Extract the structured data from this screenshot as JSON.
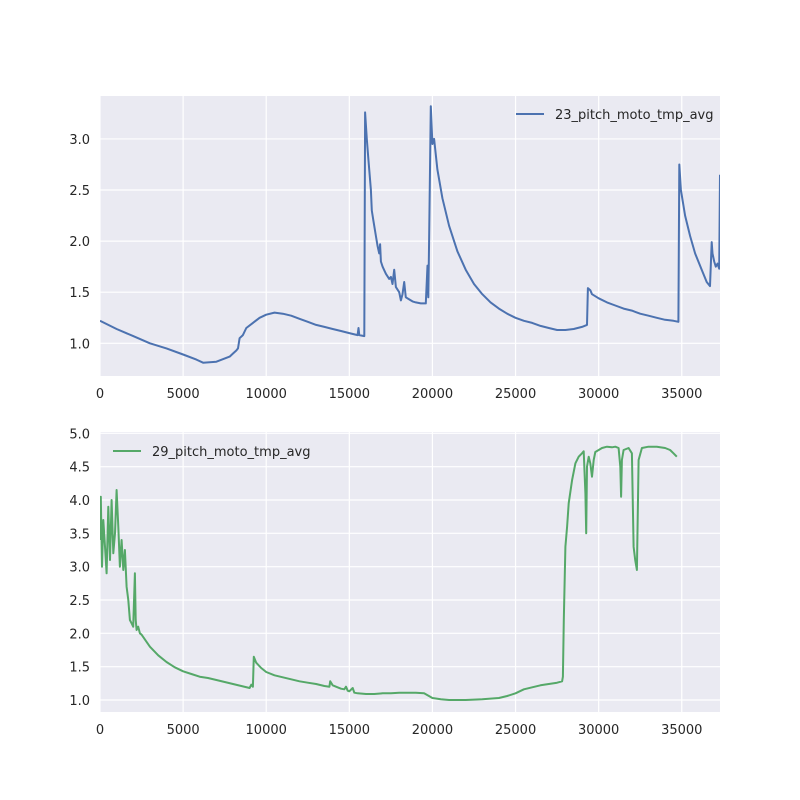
{
  "chart_data": [
    {
      "type": "line",
      "grid": true,
      "legend_position": "top-right",
      "xlim": [
        0,
        37300
      ],
      "ylim": [
        0.68,
        3.42
      ],
      "x_ticks": [
        0,
        5000,
        10000,
        15000,
        20000,
        25000,
        30000,
        35000
      ],
      "x_tick_labels": [
        "0",
        "5000",
        "10000",
        "15000",
        "20000",
        "25000",
        "30000",
        "35000"
      ],
      "y_ticks": [
        1.0,
        1.5,
        2.0,
        2.5,
        3.0
      ],
      "y_tick_labels": [
        "1.0",
        "1.5",
        "2.0",
        "2.5",
        "3.0"
      ],
      "series": [
        {
          "name": "23_pitch_moto_tmp_avg",
          "color": "#4c72b0",
          "points": [
            [
              0,
              1.22
            ],
            [
              1000,
              1.14
            ],
            [
              2000,
              1.07
            ],
            [
              3000,
              1.0
            ],
            [
              4000,
              0.95
            ],
            [
              5000,
              0.89
            ],
            [
              5800,
              0.84
            ],
            [
              6200,
              0.81
            ],
            [
              7000,
              0.82
            ],
            [
              7800,
              0.87
            ],
            [
              8000,
              0.9
            ],
            [
              8200,
              0.93
            ],
            [
              8300,
              0.95
            ],
            [
              8400,
              1.05
            ],
            [
              8600,
              1.08
            ],
            [
              8800,
              1.15
            ],
            [
              9200,
              1.2
            ],
            [
              9600,
              1.25
            ],
            [
              10000,
              1.28
            ],
            [
              10500,
              1.3
            ],
            [
              11000,
              1.29
            ],
            [
              11500,
              1.27
            ],
            [
              12000,
              1.24
            ],
            [
              12500,
              1.21
            ],
            [
              13000,
              1.18
            ],
            [
              13500,
              1.16
            ],
            [
              14000,
              1.14
            ],
            [
              14500,
              1.12
            ],
            [
              15000,
              1.1
            ],
            [
              15500,
              1.08
            ],
            [
              15550,
              1.15
            ],
            [
              15600,
              1.08
            ],
            [
              15900,
              1.07
            ],
            [
              15950,
              3.26
            ],
            [
              16050,
              3.0
            ],
            [
              16150,
              2.8
            ],
            [
              16300,
              2.5
            ],
            [
              16350,
              2.3
            ],
            [
              16400,
              2.25
            ],
            [
              16450,
              2.2
            ],
            [
              16600,
              2.05
            ],
            [
              16700,
              1.95
            ],
            [
              16800,
              1.88
            ],
            [
              16850,
              1.97
            ],
            [
              16900,
              1.8
            ],
            [
              17000,
              1.75
            ],
            [
              17200,
              1.68
            ],
            [
              17400,
              1.63
            ],
            [
              17500,
              1.65
            ],
            [
              17600,
              1.58
            ],
            [
              17700,
              1.72
            ],
            [
              17800,
              1.55
            ],
            [
              18000,
              1.5
            ],
            [
              18100,
              1.42
            ],
            [
              18200,
              1.48
            ],
            [
              18300,
              1.6
            ],
            [
              18400,
              1.45
            ],
            [
              18600,
              1.43
            ],
            [
              18800,
              1.41
            ],
            [
              19000,
              1.4
            ],
            [
              19300,
              1.39
            ],
            [
              19600,
              1.39
            ],
            [
              19700,
              1.76
            ],
            [
              19750,
              1.45
            ],
            [
              19800,
              2.0
            ],
            [
              19900,
              3.32
            ],
            [
              20000,
              2.95
            ],
            [
              20100,
              3.0
            ],
            [
              20300,
              2.7
            ],
            [
              20600,
              2.42
            ],
            [
              21000,
              2.15
            ],
            [
              21500,
              1.9
            ],
            [
              22000,
              1.72
            ],
            [
              22500,
              1.58
            ],
            [
              23000,
              1.48
            ],
            [
              23500,
              1.4
            ],
            [
              24000,
              1.34
            ],
            [
              24500,
              1.29
            ],
            [
              25000,
              1.25
            ],
            [
              25500,
              1.22
            ],
            [
              26000,
              1.2
            ],
            [
              26500,
              1.17
            ],
            [
              27000,
              1.15
            ],
            [
              27500,
              1.13
            ],
            [
              28000,
              1.13
            ],
            [
              28500,
              1.14
            ],
            [
              29000,
              1.16
            ],
            [
              29300,
              1.18
            ],
            [
              29350,
              1.54
            ],
            [
              29500,
              1.52
            ],
            [
              29600,
              1.48
            ],
            [
              30000,
              1.44
            ],
            [
              30500,
              1.4
            ],
            [
              31000,
              1.37
            ],
            [
              31500,
              1.34
            ],
            [
              32000,
              1.32
            ],
            [
              32500,
              1.29
            ],
            [
              33000,
              1.27
            ],
            [
              33500,
              1.25
            ],
            [
              34000,
              1.23
            ],
            [
              34500,
              1.22
            ],
            [
              34800,
              1.21
            ],
            [
              34850,
              2.75
            ],
            [
              34950,
              2.5
            ],
            [
              35200,
              2.25
            ],
            [
              35500,
              2.05
            ],
            [
              35800,
              1.88
            ],
            [
              36200,
              1.72
            ],
            [
              36500,
              1.6
            ],
            [
              36700,
              1.56
            ],
            [
              36800,
              1.99
            ],
            [
              36850,
              1.88
            ],
            [
              36950,
              1.8
            ],
            [
              37050,
              1.75
            ],
            [
              37150,
              1.78
            ],
            [
              37250,
              1.73
            ],
            [
              37300,
              2.65
            ]
          ]
        }
      ]
    },
    {
      "type": "line",
      "grid": true,
      "legend_position": "top-left",
      "xlim": [
        0,
        37300
      ],
      "ylim": [
        0.82,
        5.02
      ],
      "x_ticks": [
        0,
        5000,
        10000,
        15000,
        20000,
        25000,
        30000,
        35000
      ],
      "x_tick_labels": [
        "0",
        "5000",
        "10000",
        "15000",
        "20000",
        "25000",
        "30000",
        "35000"
      ],
      "y_ticks": [
        1.0,
        1.5,
        2.0,
        2.5,
        3.0,
        3.5,
        4.0,
        4.5,
        5.0
      ],
      "y_tick_labels": [
        "1.0",
        "1.5",
        "2.0",
        "2.5",
        "3.0",
        "3.5",
        "4.0",
        "4.5",
        "5.0"
      ],
      "series": [
        {
          "name": "29_pitch_moto_tmp_avg",
          "color": "#55a868",
          "points": [
            [
              0,
              3.4
            ],
            [
              50,
              4.05
            ],
            [
              120,
              3.0
            ],
            [
              200,
              3.7
            ],
            [
              300,
              3.3
            ],
            [
              400,
              2.9
            ],
            [
              500,
              3.9
            ],
            [
              600,
              3.1
            ],
            [
              700,
              4.0
            ],
            [
              800,
              3.2
            ],
            [
              900,
              3.5
            ],
            [
              1000,
              4.15
            ],
            [
              1100,
              3.6
            ],
            [
              1200,
              3.0
            ],
            [
              1300,
              3.4
            ],
            [
              1400,
              2.95
            ],
            [
              1500,
              3.25
            ],
            [
              1600,
              2.7
            ],
            [
              1700,
              2.5
            ],
            [
              1800,
              2.2
            ],
            [
              1900,
              2.15
            ],
            [
              2000,
              2.1
            ],
            [
              2100,
              2.9
            ],
            [
              2150,
              2.2
            ],
            [
              2200,
              2.05
            ],
            [
              2300,
              2.1
            ],
            [
              2400,
              2.0
            ],
            [
              2500,
              1.98
            ],
            [
              3000,
              1.8
            ],
            [
              3500,
              1.67
            ],
            [
              4000,
              1.57
            ],
            [
              4500,
              1.49
            ],
            [
              5000,
              1.43
            ],
            [
              5500,
              1.39
            ],
            [
              6000,
              1.35
            ],
            [
              6500,
              1.33
            ],
            [
              7000,
              1.3
            ],
            [
              7500,
              1.27
            ],
            [
              8000,
              1.24
            ],
            [
              8500,
              1.21
            ],
            [
              9000,
              1.18
            ],
            [
              9100,
              1.23
            ],
            [
              9200,
              1.2
            ],
            [
              9250,
              1.65
            ],
            [
              9400,
              1.56
            ],
            [
              9700,
              1.48
            ],
            [
              10000,
              1.42
            ],
            [
              10500,
              1.37
            ],
            [
              11000,
              1.34
            ],
            [
              11500,
              1.31
            ],
            [
              12000,
              1.28
            ],
            [
              12500,
              1.26
            ],
            [
              13000,
              1.24
            ],
            [
              13500,
              1.21
            ],
            [
              13800,
              1.2
            ],
            [
              13850,
              1.28
            ],
            [
              14000,
              1.22
            ],
            [
              14200,
              1.2
            ],
            [
              14500,
              1.17
            ],
            [
              14700,
              1.16
            ],
            [
              14800,
              1.2
            ],
            [
              14900,
              1.14
            ],
            [
              15000,
              1.13
            ],
            [
              15200,
              1.18
            ],
            [
              15300,
              1.11
            ],
            [
              15500,
              1.1
            ],
            [
              16000,
              1.09
            ],
            [
              16500,
              1.09
            ],
            [
              17000,
              1.1
            ],
            [
              17500,
              1.1
            ],
            [
              18000,
              1.11
            ],
            [
              18500,
              1.11
            ],
            [
              19000,
              1.11
            ],
            [
              19500,
              1.1
            ],
            [
              20000,
              1.03
            ],
            [
              20500,
              1.01
            ],
            [
              21000,
              1.0
            ],
            [
              22000,
              1.0
            ],
            [
              23000,
              1.01
            ],
            [
              24000,
              1.03
            ],
            [
              24500,
              1.06
            ],
            [
              25000,
              1.1
            ],
            [
              25500,
              1.16
            ],
            [
              26000,
              1.19
            ],
            [
              26500,
              1.22
            ],
            [
              27000,
              1.24
            ],
            [
              27500,
              1.26
            ],
            [
              27800,
              1.28
            ],
            [
              27850,
              1.35
            ],
            [
              27900,
              2.2
            ],
            [
              28000,
              3.3
            ],
            [
              28100,
              3.6
            ],
            [
              28200,
              3.95
            ],
            [
              28400,
              4.3
            ],
            [
              28600,
              4.55
            ],
            [
              28800,
              4.65
            ],
            [
              29000,
              4.7
            ],
            [
              29100,
              4.73
            ],
            [
              29200,
              4.1
            ],
            [
              29250,
              3.5
            ],
            [
              29300,
              4.5
            ],
            [
              29400,
              4.65
            ],
            [
              29500,
              4.55
            ],
            [
              29600,
              4.35
            ],
            [
              29700,
              4.6
            ],
            [
              29800,
              4.72
            ],
            [
              30000,
              4.75
            ],
            [
              30200,
              4.78
            ],
            [
              30500,
              4.8
            ],
            [
              30800,
              4.79
            ],
            [
              31000,
              4.8
            ],
            [
              31200,
              4.78
            ],
            [
              31300,
              4.5
            ],
            [
              31350,
              4.05
            ],
            [
              31400,
              4.6
            ],
            [
              31500,
              4.75
            ],
            [
              31800,
              4.78
            ],
            [
              32000,
              4.7
            ],
            [
              32100,
              3.3
            ],
            [
              32200,
              3.1
            ],
            [
              32300,
              2.95
            ],
            [
              32400,
              4.6
            ],
            [
              32600,
              4.78
            ],
            [
              33000,
              4.8
            ],
            [
              33500,
              4.8
            ],
            [
              34000,
              4.78
            ],
            [
              34300,
              4.75
            ],
            [
              34500,
              4.7
            ],
            [
              34700,
              4.65
            ]
          ]
        }
      ]
    }
  ]
}
